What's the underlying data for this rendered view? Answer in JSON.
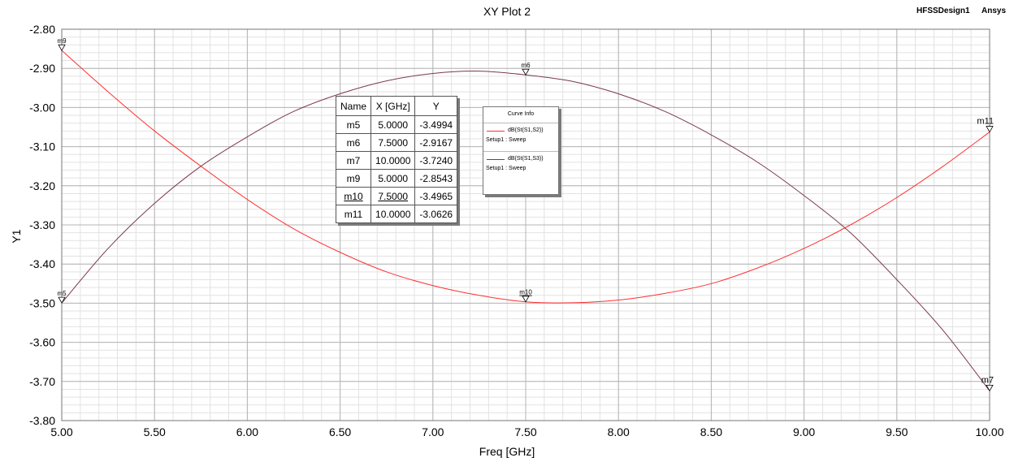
{
  "header": {
    "title": "XY Plot 2",
    "design_name": "HFSSDesign1",
    "vendor": "Ansys"
  },
  "chart_data": {
    "type": "line",
    "title": "XY Plot 2",
    "xlabel": "Freq [GHz]",
    "ylabel": "Y1",
    "xlim": [
      5.0,
      10.0
    ],
    "ylim": [
      -3.8,
      -2.8
    ],
    "xticks": [
      "5.00",
      "5.50",
      "6.00",
      "6.50",
      "7.00",
      "7.50",
      "8.00",
      "8.50",
      "9.00",
      "9.50",
      "10.00"
    ],
    "yticks": [
      "-2.80",
      "-2.90",
      "-3.00",
      "-3.10",
      "-3.20",
      "-3.30",
      "-3.40",
      "-3.50",
      "-3.60",
      "-3.70",
      "-3.80"
    ],
    "grid": true,
    "series": [
      {
        "name": "dB(St(S1,S2))",
        "setup": "Setup1 : Sweep",
        "color": "#ff3030",
        "x": [
          5.0,
          5.25,
          5.5,
          5.75,
          6.0,
          6.25,
          6.5,
          6.75,
          7.0,
          7.25,
          7.5,
          7.75,
          8.0,
          8.25,
          8.5,
          8.75,
          9.0,
          9.25,
          9.5,
          9.75,
          10.0
        ],
        "y": [
          -2.8543,
          -2.96,
          -3.06,
          -3.15,
          -3.235,
          -3.31,
          -3.37,
          -3.42,
          -3.455,
          -3.48,
          -3.4965,
          -3.499,
          -3.492,
          -3.475,
          -3.45,
          -3.41,
          -3.36,
          -3.3,
          -3.23,
          -3.15,
          -3.0626
        ]
      },
      {
        "name": "dB(St(S1,S3))",
        "setup": "Setup1 : Sweep",
        "color": "#7a3a4a",
        "x": [
          5.0,
          5.25,
          5.5,
          5.75,
          6.0,
          6.25,
          6.5,
          6.75,
          7.0,
          7.25,
          7.5,
          7.75,
          8.0,
          8.25,
          8.5,
          8.75,
          9.0,
          9.25,
          9.5,
          9.75,
          10.0
        ],
        "y": [
          -3.4994,
          -3.36,
          -3.245,
          -3.15,
          -3.075,
          -3.01,
          -2.965,
          -2.932,
          -2.913,
          -2.907,
          -2.9167,
          -2.933,
          -2.965,
          -3.01,
          -3.07,
          -3.14,
          -3.225,
          -3.32,
          -3.44,
          -3.57,
          -3.724
        ]
      }
    ],
    "markers": [
      {
        "name": "m5",
        "x": 5.0,
        "y": -3.4994,
        "series": 1
      },
      {
        "name": "m6",
        "x": 7.5,
        "y": -2.9167,
        "series": 1
      },
      {
        "name": "m7",
        "x": 10.0,
        "y": -3.724,
        "series": 1
      },
      {
        "name": "m9",
        "x": 5.0,
        "y": -2.8543,
        "series": 0
      },
      {
        "name": "m10",
        "x": 7.5,
        "y": -3.4965,
        "series": 0
      },
      {
        "name": "m11",
        "x": 10.0,
        "y": -3.0626,
        "series": 0
      }
    ]
  },
  "marker_table": {
    "headers": [
      "Name",
      "X [GHz]",
      "Y"
    ],
    "rows": [
      [
        "m5",
        "5.0000",
        "-3.4994"
      ],
      [
        "m6",
        "7.5000",
        "-2.9167"
      ],
      [
        "m7",
        "10.0000",
        "-3.7240"
      ],
      [
        "m9",
        "5.0000",
        "-2.8543"
      ],
      [
        "m10",
        "7.5000",
        "-3.4965"
      ],
      [
        "m11",
        "10.0000",
        "-3.0626"
      ]
    ]
  },
  "curve_info": {
    "title": "Curve Info",
    "entries": [
      {
        "name": "dB(St(S1,S2))",
        "setup": "Setup1 : Sweep",
        "color": "#ff3030"
      },
      {
        "name": "dB(St(S1,S3))",
        "setup": "Setup1 : Sweep",
        "color": "#7a3a4a"
      }
    ]
  }
}
